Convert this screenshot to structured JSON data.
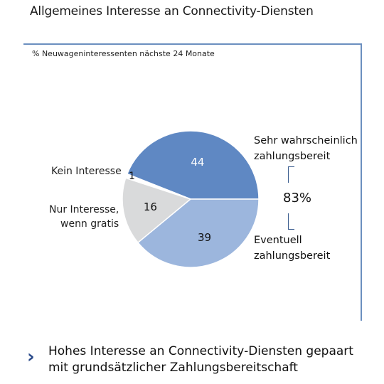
{
  "title": "Allgemeines Interesse an Connectivity-Diensten",
  "chart_data": {
    "type": "pie",
    "subtitle": "% Neuwageninteressenten nächste 24 Monate",
    "slices": [
      {
        "label": "Sehr wahrscheinlich zahlungsbereit",
        "value": 44,
        "color": "#5f88c3"
      },
      {
        "label": "Eventuell zahlungsbereit",
        "value": 39,
        "color": "#9cb6dd"
      },
      {
        "label": "Nur Interesse, wenn gratis",
        "value": 16,
        "color": "#d9dadb"
      },
      {
        "label": "Kein Interesse",
        "value": 1,
        "color": "#ffffff"
      }
    ],
    "left_labels": {
      "kein_interesse": "Kein Interesse",
      "nur_interesse_line1": "Nur Interesse,",
      "nur_interesse_line2": "wenn gratis"
    },
    "right_labels": {
      "sehr_line1": "Sehr wahrscheinlich",
      "sehr_line2": "zahlungsbereit",
      "eventuell_line1": "Eventuell",
      "eventuell_line2": "zahlungsbereit"
    },
    "combined_percent": "83%"
  },
  "footer": {
    "arrow": "›",
    "line1": "Hohes Interesse an Connectivity-Diensten gepaart",
    "line2": "mit grundsätzlicher Zahlungsbereitschaft"
  }
}
